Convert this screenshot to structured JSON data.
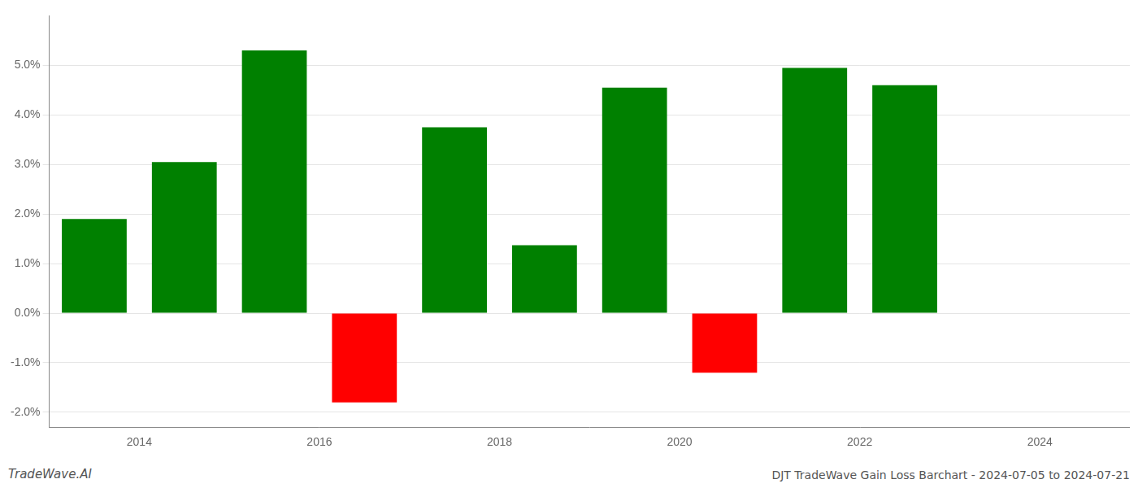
{
  "chart_data": {
    "type": "bar",
    "title": "DJT TradeWave Gain Loss Barchart - 2024-07-05 to 2024-07-21",
    "annotations": [
      "TradeWave.AI"
    ],
    "x": [
      2013.5,
      2014.5,
      2015.5,
      2016.5,
      2017.5,
      2018.5,
      2019.5,
      2020.5,
      2021.5,
      2022.5
    ],
    "values": [
      0.019,
      0.0305,
      0.053,
      -0.018,
      0.0375,
      0.0137,
      0.0455,
      -0.012,
      0.0495,
      0.046
    ],
    "colors": [
      "#008000",
      "#008000",
      "#008000",
      "#ff0000",
      "#008000",
      "#008000",
      "#008000",
      "#ff0000",
      "#008000",
      "#008000"
    ],
    "xlim": [
      2013,
      2025
    ],
    "xticks": [
      2014,
      2016,
      2018,
      2020,
      2022,
      2024
    ],
    "ylim": [
      -0.023,
      0.06
    ],
    "yticks": [
      {
        "value": -0.02,
        "label": "-2.0%"
      },
      {
        "value": -0.01,
        "label": "-1.0%"
      },
      {
        "value": 0.0,
        "label": "0.0%"
      },
      {
        "value": 0.01,
        "label": "1.0%"
      },
      {
        "value": 0.02,
        "label": "2.0%"
      },
      {
        "value": 0.03,
        "label": "3.0%"
      },
      {
        "value": 0.04,
        "label": "4.0%"
      },
      {
        "value": 0.05,
        "label": "5.0%"
      }
    ],
    "grid": "y"
  }
}
